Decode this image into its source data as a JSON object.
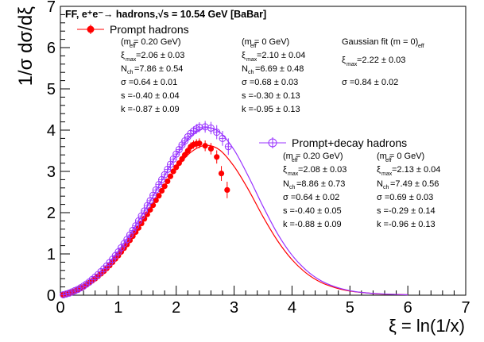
{
  "chart_data": {
    "type": "scatter",
    "title": "FF, e⁺e⁻→ hadrons,√s = 10.54 GeV [BaBar]",
    "xlabel": "ξ = ln(1/x)",
    "ylabel": "1/σ dσ/dξ",
    "xlim": [
      0,
      7
    ],
    "ylim": [
      0,
      7
    ],
    "x_ticks": [
      "0",
      "1",
      "2",
      "3",
      "4",
      "5",
      "6",
      "7"
    ],
    "y_ticks": [
      "0",
      "1",
      "2",
      "3",
      "4",
      "5",
      "6",
      "7"
    ],
    "grid": false,
    "legend": "top-left and middle-right",
    "colors": {
      "prompt": "#ff0000",
      "decay": "#9933ff"
    },
    "series": [
      {
        "name": "Prompt hadrons",
        "marker": "filled-circle",
        "color": "#ff0000",
        "x": [
          0.05,
          0.1,
          0.15,
          0.2,
          0.25,
          0.3,
          0.35,
          0.4,
          0.45,
          0.5,
          0.55,
          0.6,
          0.65,
          0.7,
          0.75,
          0.8,
          0.85,
          0.9,
          0.95,
          1.0,
          1.05,
          1.1,
          1.15,
          1.2,
          1.25,
          1.3,
          1.35,
          1.4,
          1.45,
          1.5,
          1.55,
          1.6,
          1.65,
          1.7,
          1.75,
          1.8,
          1.85,
          1.9,
          1.95,
          2.0,
          2.05,
          2.1,
          2.15,
          2.2,
          2.25,
          2.3,
          2.35,
          2.4,
          2.5,
          2.6,
          2.7,
          2.78,
          2.88
        ],
        "y": [
          0.01,
          0.03,
          0.05,
          0.07,
          0.1,
          0.13,
          0.17,
          0.2,
          0.25,
          0.3,
          0.35,
          0.4,
          0.46,
          0.52,
          0.58,
          0.65,
          0.72,
          0.8,
          0.88,
          0.96,
          1.05,
          1.14,
          1.23,
          1.33,
          1.43,
          1.53,
          1.63,
          1.74,
          1.85,
          1.96,
          2.07,
          2.18,
          2.3,
          2.41,
          2.53,
          2.64,
          2.76,
          2.88,
          3.0,
          3.1,
          3.2,
          3.3,
          3.4,
          3.5,
          3.6,
          3.65,
          3.67,
          3.68,
          3.62,
          3.55,
          3.35,
          2.95,
          2.55
        ],
        "yerr": [
          0.01,
          0.01,
          0.01,
          0.01,
          0.01,
          0.01,
          0.01,
          0.01,
          0.01,
          0.01,
          0.01,
          0.01,
          0.01,
          0.01,
          0.01,
          0.02,
          0.02,
          0.02,
          0.02,
          0.02,
          0.02,
          0.02,
          0.02,
          0.02,
          0.03,
          0.03,
          0.03,
          0.03,
          0.03,
          0.03,
          0.04,
          0.04,
          0.04,
          0.04,
          0.05,
          0.05,
          0.05,
          0.06,
          0.06,
          0.07,
          0.07,
          0.08,
          0.08,
          0.09,
          0.1,
          0.1,
          0.11,
          0.12,
          0.13,
          0.14,
          0.16,
          0.18,
          0.2
        ]
      },
      {
        "name": "Prompt+decay hadrons",
        "marker": "open-circle-cross",
        "color": "#9933ff",
        "x": [
          0.05,
          0.1,
          0.15,
          0.2,
          0.25,
          0.3,
          0.35,
          0.4,
          0.45,
          0.5,
          0.55,
          0.6,
          0.65,
          0.7,
          0.75,
          0.8,
          0.85,
          0.9,
          0.95,
          1.0,
          1.05,
          1.1,
          1.15,
          1.2,
          1.25,
          1.3,
          1.35,
          1.4,
          1.45,
          1.5,
          1.55,
          1.6,
          1.65,
          1.7,
          1.75,
          1.8,
          1.85,
          1.9,
          1.95,
          2.0,
          2.05,
          2.1,
          2.15,
          2.2,
          2.25,
          2.3,
          2.35,
          2.4,
          2.5,
          2.6,
          2.7,
          2.8,
          2.9
        ],
        "y": [
          0.01,
          0.03,
          0.05,
          0.08,
          0.11,
          0.14,
          0.18,
          0.22,
          0.27,
          0.32,
          0.38,
          0.44,
          0.5,
          0.57,
          0.64,
          0.71,
          0.79,
          0.87,
          0.96,
          1.05,
          1.15,
          1.25,
          1.35,
          1.46,
          1.57,
          1.68,
          1.8,
          1.92,
          2.04,
          2.17,
          2.29,
          2.42,
          2.55,
          2.68,
          2.8,
          2.92,
          3.05,
          3.17,
          3.3,
          3.42,
          3.53,
          3.64,
          3.74,
          3.84,
          3.92,
          3.98,
          4.03,
          4.07,
          4.08,
          4.05,
          3.95,
          3.8,
          3.6
        ],
        "yerr": [
          0.01,
          0.01,
          0.01,
          0.01,
          0.01,
          0.01,
          0.01,
          0.01,
          0.01,
          0.01,
          0.01,
          0.01,
          0.01,
          0.01,
          0.02,
          0.02,
          0.02,
          0.02,
          0.02,
          0.02,
          0.02,
          0.02,
          0.02,
          0.03,
          0.03,
          0.03,
          0.03,
          0.03,
          0.04,
          0.04,
          0.04,
          0.04,
          0.05,
          0.05,
          0.05,
          0.05,
          0.06,
          0.06,
          0.07,
          0.07,
          0.08,
          0.08,
          0.09,
          0.09,
          0.1,
          0.11,
          0.12,
          0.12,
          0.14,
          0.15,
          0.17,
          0.18,
          0.2
        ]
      }
    ],
    "fit_curves": [
      {
        "name": "prompt-fit",
        "color": "#ff0000",
        "x": [
          0,
          0.25,
          0.5,
          0.75,
          1.0,
          1.25,
          1.5,
          1.75,
          2.0,
          2.25,
          2.5,
          2.75,
          3.0,
          3.25,
          3.5,
          3.75,
          4.0,
          4.25,
          4.5,
          4.75,
          5.0,
          5.25,
          5.5,
          5.75,
          6.0
        ],
        "y": [
          0,
          0.09,
          0.29,
          0.6,
          0.98,
          1.45,
          1.98,
          2.54,
          3.07,
          3.46,
          3.63,
          3.52,
          3.12,
          2.55,
          1.9,
          1.32,
          0.86,
          0.53,
          0.31,
          0.18,
          0.1,
          0.06,
          0.03,
          0.02,
          0.01
        ]
      },
      {
        "name": "decay-fit",
        "color": "#9933ff",
        "x": [
          0,
          0.25,
          0.5,
          0.75,
          1.0,
          1.25,
          1.5,
          1.75,
          2.0,
          2.25,
          2.5,
          2.75,
          3.0,
          3.25,
          3.5,
          3.75,
          4.0,
          4.25,
          4.5,
          4.75,
          5.0,
          5.25,
          5.5,
          5.75,
          6.0
        ],
        "y": [
          0,
          0.1,
          0.31,
          0.65,
          1.07,
          1.58,
          2.15,
          2.77,
          3.38,
          3.85,
          4.06,
          3.95,
          3.52,
          2.87,
          2.15,
          1.49,
          0.97,
          0.6,
          0.35,
          0.2,
          0.11,
          0.06,
          0.035,
          0.02,
          0.01
        ]
      }
    ]
  },
  "title": "FF, e⁺e⁻→ hadrons,√s = 10.54 GeV [BaBar]",
  "legend": {
    "prompt_label": "Prompt hadrons",
    "decay_label": "Prompt+decay hadrons"
  },
  "prompt_box": {
    "col1": {
      "header": "(m   = 0.20 GeV)",
      "header_sub": "eff",
      "xi": "=2.06 ± 0.03",
      "nch": "=7.86 ± 0.54",
      "sigma": "σ =0.64 ± 0.01",
      "s": "s =-0.40 ± 0.04",
      "k": "k =-0.87 ± 0.09"
    },
    "col2": {
      "header": "(m   = 0 GeV)",
      "header_sub": "eff",
      "xi": "=2.10 ± 0.04",
      "nch": "=6.69 ± 0.48",
      "sigma": "σ =0.68 ± 0.03",
      "s": "s =-0.30 ± 0.13",
      "k": "k =-0.95 ± 0.13"
    },
    "col3": {
      "header": "Gaussian fit (m   = 0)",
      "header_sub": "eff",
      "xi": "=2.22 ± 0.03",
      "sigma": "σ =0.84 ± 0.02"
    }
  },
  "decay_box": {
    "col1": {
      "header": "(m   = 0.20 GeV)",
      "header_sub": "eff",
      "xi": "=2.08 ± 0.03",
      "nch": "=8.86 ± 0.73",
      "sigma": "σ =0.64 ± 0.02",
      "s": "s =-0.40 ± 0.05",
      "k": "k =-0.88 ± 0.09"
    },
    "col2": {
      "header": "(m   = 0 GeV)",
      "header_sub": "eff",
      "xi": "=2.13 ± 0.04",
      "nch": "=7.49 ± 0.56",
      "sigma": "σ =0.69 ± 0.03",
      "s": "s =-0.29 ± 0.14",
      "k": "k =-0.96 ± 0.13"
    }
  },
  "symbols": {
    "xi": "ξ",
    "xi_sub": "max",
    "nch": "N",
    "nch_sub": "ch"
  }
}
